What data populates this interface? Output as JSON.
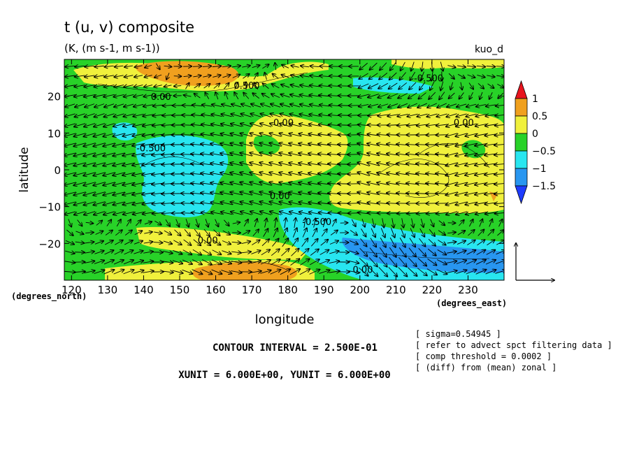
{
  "chart_data": {
    "type": "heatmap",
    "title": "t (u, v) composite",
    "subtitle": "(K, (m s-1, m s-1))",
    "corner_label": "kuo_d",
    "xlabel": "longitude",
    "ylabel": "latitude",
    "x_unit_label": "(degrees_east)",
    "y_unit_label": "(degrees_north)",
    "xlim": [
      118,
      240
    ],
    "ylim": [
      -30,
      30
    ],
    "xticks": [
      120,
      130,
      140,
      150,
      160,
      170,
      180,
      190,
      200,
      210,
      220,
      230
    ],
    "xtick_labels": [
      "120",
      "130",
      "140",
      "150",
      "160",
      "170",
      "180",
      "190",
      "200",
      "210",
      "220",
      "230"
    ],
    "yticks": [
      20,
      10,
      0,
      -10,
      -20
    ],
    "ytick_labels": [
      "20",
      "10",
      "0",
      "−10",
      "−20"
    ],
    "colorbar": {
      "levels": [
        -1.5,
        -1,
        -0.5,
        0,
        0.5,
        1
      ],
      "labels": [
        "1",
        "0.5",
        "0",
        "−0.5",
        "−1",
        "−1.5"
      ],
      "colors": [
        "#e8141e",
        "#f0a01e",
        "#f0f03c",
        "#28d228",
        "#28e6f0",
        "#2896f0",
        "#1e3cff"
      ]
    },
    "contour_labels": [
      {
        "lon": 142,
        "lat": 19,
        "text": "0.00"
      },
      {
        "lon": 165,
        "lat": 22,
        "text": "0.500"
      },
      {
        "lon": 215,
        "lat": 24,
        "text": "-0.500"
      },
      {
        "lon": 176,
        "lat": 12,
        "text": "0.00"
      },
      {
        "lon": 226,
        "lat": 12,
        "text": "0.00"
      },
      {
        "lon": 138,
        "lat": 5,
        "text": "-0.500"
      },
      {
        "lon": 175,
        "lat": -8,
        "text": "0.00"
      },
      {
        "lon": 184,
        "lat": -15,
        "text": "-0.500"
      },
      {
        "lon": 155,
        "lat": -20,
        "text": "0.00"
      },
      {
        "lon": 198,
        "lat": -28,
        "text": "0.00"
      }
    ],
    "vector_reference": "6.000E+00",
    "grid": false
  },
  "footer": {
    "contour_interval": "CONTOUR INTERVAL = 2.500E-01",
    "units": "XUNIT = 6.000E+00, YUNIT = 6.000E+00"
  },
  "notes": [
    "[ sigma=0.54945 ]",
    "[ refer to advect spct filtering data ]",
    "[ comp threshold = 0.0002 ]",
    "[ (diff) from (mean) zonal ]"
  ]
}
